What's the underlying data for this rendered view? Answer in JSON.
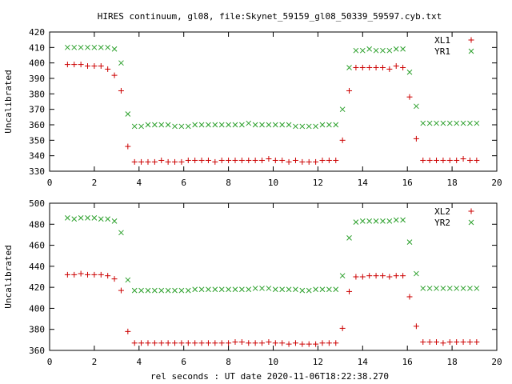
{
  "title": "HIRES continuum, gl08, file:Skynet_59159_gl08_50339_59597.cyb.txt",
  "xlabel": "rel seconds : UT date 2020-11-06T18:22:38.270",
  "chart_data": [
    {
      "type": "scatter",
      "ylabel": "Uncalibrated",
      "xlim": [
        0,
        20
      ],
      "ylim": [
        330,
        420
      ],
      "xticks": [
        0,
        2,
        4,
        6,
        8,
        10,
        12,
        14,
        16,
        18,
        20
      ],
      "yticks": [
        330,
        340,
        350,
        360,
        370,
        380,
        390,
        400,
        410,
        420
      ],
      "legend": "top-right",
      "x": [
        0.8,
        1.1,
        1.4,
        1.7,
        2.0,
        2.3,
        2.6,
        2.9,
        3.2,
        3.5,
        3.8,
        4.1,
        4.4,
        4.7,
        5.0,
        5.3,
        5.6,
        5.9,
        6.2,
        6.5,
        6.8,
        7.1,
        7.4,
        7.7,
        8.0,
        8.3,
        8.6,
        8.9,
        9.2,
        9.5,
        9.8,
        10.1,
        10.4,
        10.7,
        11.0,
        11.3,
        11.6,
        11.9,
        12.2,
        12.5,
        12.8,
        13.1,
        13.4,
        13.7,
        14.0,
        14.3,
        14.6,
        14.9,
        15.2,
        15.5,
        15.8,
        16.1,
        16.4,
        16.7,
        17.0,
        17.3,
        17.6,
        17.9,
        18.2,
        18.5,
        18.8,
        19.1
      ],
      "series": [
        {
          "name": "XL1",
          "marker": "plus",
          "color": "#cc0000",
          "values": [
            399,
            399,
            399,
            398,
            398,
            398,
            396,
            392,
            382,
            346,
            336,
            336,
            336,
            336,
            337,
            336,
            336,
            336,
            337,
            337,
            337,
            337,
            336,
            337,
            337,
            337,
            337,
            337,
            337,
            337,
            338,
            337,
            337,
            336,
            337,
            336,
            336,
            336,
            337,
            337,
            337,
            350,
            382,
            397,
            397,
            397,
            397,
            397,
            396,
            398,
            397,
            378,
            351,
            337,
            337,
            337,
            337,
            337,
            337,
            338,
            337,
            337
          ]
        },
        {
          "name": "YR1",
          "marker": "x",
          "color": "#2ca02c",
          "values": [
            410,
            410,
            410,
            410,
            410,
            410,
            410,
            409,
            400,
            367,
            359,
            359,
            360,
            360,
            360,
            360,
            359,
            359,
            359,
            360,
            360,
            360,
            360,
            360,
            360,
            360,
            360,
            361,
            360,
            360,
            360,
            360,
            360,
            360,
            359,
            359,
            359,
            359,
            360,
            360,
            360,
            370,
            397,
            408,
            408,
            409,
            408,
            408,
            408,
            409,
            409,
            394,
            372,
            361,
            361,
            361,
            361,
            361,
            361,
            361,
            361,
            361
          ]
        }
      ]
    },
    {
      "type": "scatter",
      "ylabel": "Uncalibrated",
      "xlim": [
        0,
        20
      ],
      "ylim": [
        360,
        500
      ],
      "xticks": [
        0,
        2,
        4,
        6,
        8,
        10,
        12,
        14,
        16,
        18,
        20
      ],
      "yticks": [
        360,
        380,
        400,
        420,
        440,
        460,
        480,
        500
      ],
      "legend": "top-right",
      "x": [
        0.8,
        1.1,
        1.4,
        1.7,
        2.0,
        2.3,
        2.6,
        2.9,
        3.2,
        3.5,
        3.8,
        4.1,
        4.4,
        4.7,
        5.0,
        5.3,
        5.6,
        5.9,
        6.2,
        6.5,
        6.8,
        7.1,
        7.4,
        7.7,
        8.0,
        8.3,
        8.6,
        8.9,
        9.2,
        9.5,
        9.8,
        10.1,
        10.4,
        10.7,
        11.0,
        11.3,
        11.6,
        11.9,
        12.2,
        12.5,
        12.8,
        13.1,
        13.4,
        13.7,
        14.0,
        14.3,
        14.6,
        14.9,
        15.2,
        15.5,
        15.8,
        16.1,
        16.4,
        16.7,
        17.0,
        17.3,
        17.6,
        17.9,
        18.2,
        18.5,
        18.8,
        19.1
      ],
      "series": [
        {
          "name": "XL2",
          "marker": "plus",
          "color": "#cc0000",
          "values": [
            432,
            432,
            433,
            432,
            432,
            432,
            431,
            428,
            417,
            378,
            367,
            367,
            367,
            367,
            367,
            367,
            367,
            367,
            367,
            367,
            367,
            367,
            367,
            367,
            367,
            368,
            368,
            367,
            367,
            367,
            368,
            367,
            367,
            366,
            367,
            366,
            366,
            366,
            367,
            367,
            367,
            381,
            416,
            430,
            430,
            431,
            431,
            431,
            430,
            431,
            431,
            411,
            383,
            368,
            368,
            368,
            367,
            368,
            368,
            368,
            368,
            368
          ]
        },
        {
          "name": "YR2",
          "marker": "x",
          "color": "#2ca02c",
          "values": [
            486,
            485,
            486,
            486,
            486,
            485,
            485,
            483,
            472,
            427,
            417,
            417,
            417,
            417,
            417,
            417,
            417,
            417,
            417,
            418,
            418,
            418,
            418,
            418,
            418,
            418,
            418,
            418,
            419,
            419,
            419,
            418,
            418,
            418,
            418,
            417,
            417,
            418,
            418,
            418,
            418,
            431,
            467,
            482,
            483,
            483,
            483,
            483,
            483,
            484,
            484,
            463,
            433,
            419,
            419,
            419,
            419,
            419,
            419,
            419,
            419,
            419
          ]
        }
      ]
    }
  ]
}
